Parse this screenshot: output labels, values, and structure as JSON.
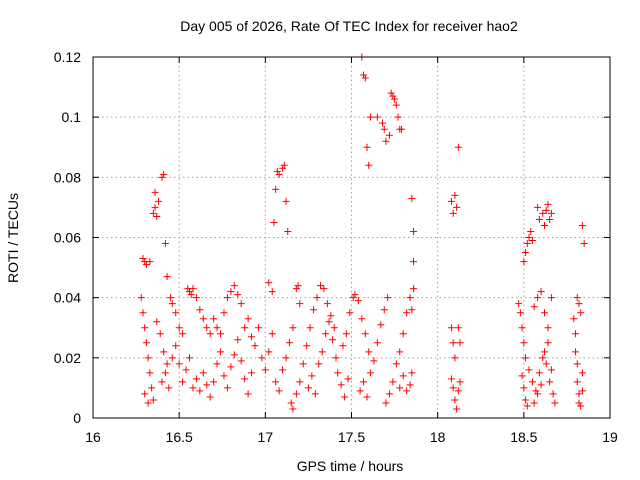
{
  "chart_data": {
    "type": "scatter",
    "title": "Day 005 of 2026, Rate Of TEC Index for receiver hao2",
    "xlabel": "GPS time / hours",
    "ylabel": "ROTI / TECUs",
    "xlim": [
      16,
      19
    ],
    "ylim": [
      0,
      0.12
    ],
    "xticks": [
      "16",
      "16.5",
      "17",
      "17.5",
      "18",
      "18.5",
      "19"
    ],
    "yticks": [
      "0",
      "0.02",
      "0.04",
      "0.06",
      "0.08",
      "0.1",
      "0.12"
    ],
    "xtick_values": [
      16,
      16.5,
      17,
      17.5,
      18,
      18.5,
      19
    ],
    "ytick_values": [
      0,
      0.02,
      0.04,
      0.06,
      0.08,
      0.1,
      0.12
    ],
    "grid": true,
    "marker": "plus",
    "color": "#ff0000",
    "series": [
      {
        "name": "ROTI",
        "points": [
          [
            16.28,
            0.04
          ],
          [
            16.29,
            0.035
          ],
          [
            16.3,
            0.03
          ],
          [
            16.31,
            0.025
          ],
          [
            16.32,
            0.02
          ],
          [
            16.33,
            0.015
          ],
          [
            16.34,
            0.01
          ],
          [
            16.35,
            0.006
          ],
          [
            16.3,
            0.008
          ],
          [
            16.32,
            0.005
          ],
          [
            16.29,
            0.053
          ],
          [
            16.3,
            0.052
          ],
          [
            16.31,
            0.051
          ],
          [
            16.33,
            0.052
          ],
          [
            16.35,
            0.068
          ],
          [
            16.36,
            0.07
          ],
          [
            16.36,
            0.075
          ],
          [
            16.37,
            0.067
          ],
          [
            16.38,
            0.072
          ],
          [
            16.4,
            0.08
          ],
          [
            16.41,
            0.081
          ],
          [
            16.42,
            0.058
          ],
          [
            16.43,
            0.047
          ],
          [
            16.37,
            0.032
          ],
          [
            16.39,
            0.028
          ],
          [
            16.41,
            0.022
          ],
          [
            16.43,
            0.018
          ],
          [
            16.45,
            0.04
          ],
          [
            16.46,
            0.038
          ],
          [
            16.48,
            0.035
          ],
          [
            16.5,
            0.03
          ],
          [
            16.52,
            0.028
          ],
          [
            16.4,
            0.012
          ],
          [
            16.42,
            0.015
          ],
          [
            16.44,
            0.01
          ],
          [
            16.46,
            0.02
          ],
          [
            16.48,
            0.024
          ],
          [
            16.5,
            0.018
          ],
          [
            16.52,
            0.012
          ],
          [
            16.54,
            0.016
          ],
          [
            16.56,
            0.02
          ],
          [
            16.55,
            0.043
          ],
          [
            16.56,
            0.042
          ],
          [
            16.57,
            0.041
          ],
          [
            16.58,
            0.043
          ],
          [
            16.6,
            0.04
          ],
          [
            16.62,
            0.036
          ],
          [
            16.64,
            0.033
          ],
          [
            16.66,
            0.03
          ],
          [
            16.68,
            0.028
          ],
          [
            16.58,
            0.01
          ],
          [
            16.6,
            0.013
          ],
          [
            16.62,
            0.009
          ],
          [
            16.64,
            0.015
          ],
          [
            16.66,
            0.011
          ],
          [
            16.68,
            0.007
          ],
          [
            16.7,
            0.012
          ],
          [
            16.72,
            0.018
          ],
          [
            16.74,
            0.022
          ],
          [
            16.7,
            0.033
          ],
          [
            16.72,
            0.03
          ],
          [
            16.74,
            0.028
          ],
          [
            16.76,
            0.035
          ],
          [
            16.78,
            0.04
          ],
          [
            16.8,
            0.042
          ],
          [
            16.82,
            0.044
          ],
          [
            16.84,
            0.041
          ],
          [
            16.86,
            0.038
          ],
          [
            16.76,
            0.014
          ],
          [
            16.78,
            0.01
          ],
          [
            16.8,
            0.017
          ],
          [
            16.82,
            0.021
          ],
          [
            16.84,
            0.026
          ],
          [
            16.86,
            0.019
          ],
          [
            16.88,
            0.013
          ],
          [
            16.9,
            0.008
          ],
          [
            16.92,
            0.015
          ],
          [
            16.88,
            0.03
          ],
          [
            16.9,
            0.033
          ],
          [
            16.92,
            0.027
          ],
          [
            16.94,
            0.024
          ],
          [
            16.96,
            0.03
          ],
          [
            16.98,
            0.02
          ],
          [
            17.0,
            0.016
          ],
          [
            17.02,
            0.022
          ],
          [
            17.04,
            0.028
          ],
          [
            17.02,
            0.045
          ],
          [
            17.04,
            0.042
          ],
          [
            17.05,
            0.065
          ],
          [
            17.06,
            0.076
          ],
          [
            17.07,
            0.082
          ],
          [
            17.08,
            0.081
          ],
          [
            17.1,
            0.083
          ],
          [
            17.11,
            0.084
          ],
          [
            17.12,
            0.072
          ],
          [
            17.13,
            0.062
          ],
          [
            17.06,
            0.012
          ],
          [
            17.08,
            0.009
          ],
          [
            17.1,
            0.016
          ],
          [
            17.12,
            0.02
          ],
          [
            17.14,
            0.025
          ],
          [
            17.16,
            0.03
          ],
          [
            17.18,
            0.043
          ],
          [
            17.19,
            0.044
          ],
          [
            17.2,
            0.038
          ],
          [
            17.15,
            0.005
          ],
          [
            17.16,
            0.003
          ],
          [
            17.18,
            0.008
          ],
          [
            17.2,
            0.012
          ],
          [
            17.22,
            0.018
          ],
          [
            17.24,
            0.024
          ],
          [
            17.26,
            0.03
          ],
          [
            17.28,
            0.036
          ],
          [
            17.3,
            0.04
          ],
          [
            17.25,
            0.01
          ],
          [
            17.27,
            0.014
          ],
          [
            17.29,
            0.008
          ],
          [
            17.31,
            0.018
          ],
          [
            17.33,
            0.022
          ],
          [
            17.35,
            0.028
          ],
          [
            17.37,
            0.032
          ],
          [
            17.39,
            0.026
          ],
          [
            17.41,
            0.02
          ],
          [
            17.32,
            0.044
          ],
          [
            17.34,
            0.043
          ],
          [
            17.36,
            0.038
          ],
          [
            17.38,
            0.034
          ],
          [
            17.4,
            0.03
          ],
          [
            17.42,
            0.015
          ],
          [
            17.44,
            0.011
          ],
          [
            17.46,
            0.007
          ],
          [
            17.48,
            0.013
          ],
          [
            17.45,
            0.024
          ],
          [
            17.47,
            0.028
          ],
          [
            17.49,
            0.035
          ],
          [
            17.51,
            0.04
          ],
          [
            17.52,
            0.041
          ],
          [
            17.54,
            0.039
          ],
          [
            17.56,
            0.033
          ],
          [
            17.58,
            0.028
          ],
          [
            17.6,
            0.022
          ],
          [
            17.56,
            0.12
          ],
          [
            17.57,
            0.114
          ],
          [
            17.58,
            0.113
          ],
          [
            17.59,
            0.09
          ],
          [
            17.6,
            0.084
          ],
          [
            17.61,
            0.1
          ],
          [
            17.55,
            0.009
          ],
          [
            17.57,
            0.012
          ],
          [
            17.59,
            0.007
          ],
          [
            17.61,
            0.015
          ],
          [
            17.63,
            0.019
          ],
          [
            17.65,
            0.025
          ],
          [
            17.67,
            0.031
          ],
          [
            17.69,
            0.036
          ],
          [
            17.71,
            0.04
          ],
          [
            17.65,
            0.1
          ],
          [
            17.68,
            0.098
          ],
          [
            17.69,
            0.096
          ],
          [
            17.7,
            0.092
          ],
          [
            17.72,
            0.094
          ],
          [
            17.73,
            0.108
          ],
          [
            17.74,
            0.107
          ],
          [
            17.75,
            0.106
          ],
          [
            17.76,
            0.104
          ],
          [
            17.77,
            0.1
          ],
          [
            17.78,
            0.096
          ],
          [
            17.79,
            0.096
          ],
          [
            17.7,
            0.005
          ],
          [
            17.72,
            0.008
          ],
          [
            17.74,
            0.012
          ],
          [
            17.76,
            0.018
          ],
          [
            17.78,
            0.022
          ],
          [
            17.8,
            0.028
          ],
          [
            17.82,
            0.035
          ],
          [
            17.84,
            0.04
          ],
          [
            17.85,
            0.036
          ],
          [
            17.78,
            0.01
          ],
          [
            17.8,
            0.014
          ],
          [
            17.82,
            0.009
          ],
          [
            17.84,
            0.011
          ],
          [
            17.85,
            0.015
          ],
          [
            17.86,
            0.052
          ],
          [
            17.86,
            0.062
          ],
          [
            17.85,
            0.073
          ],
          [
            17.86,
            0.043
          ],
          [
            18.08,
            0.03
          ],
          [
            18.09,
            0.025
          ],
          [
            18.1,
            0.02
          ],
          [
            18.08,
            0.013
          ],
          [
            18.09,
            0.01
          ],
          [
            18.1,
            0.006
          ],
          [
            18.11,
            0.003
          ],
          [
            18.12,
            0.009
          ],
          [
            18.13,
            0.012
          ],
          [
            18.08,
            0.072
          ],
          [
            18.09,
            0.068
          ],
          [
            18.1,
            0.074
          ],
          [
            18.11,
            0.07
          ],
          [
            18.12,
            0.09
          ],
          [
            18.12,
            0.03
          ],
          [
            18.13,
            0.025
          ],
          [
            18.47,
            0.038
          ],
          [
            18.48,
            0.035
          ],
          [
            18.49,
            0.03
          ],
          [
            18.5,
            0.025
          ],
          [
            18.51,
            0.02
          ],
          [
            18.49,
            0.014
          ],
          [
            18.5,
            0.01
          ],
          [
            18.51,
            0.006
          ],
          [
            18.52,
            0.004
          ],
          [
            18.5,
            0.052
          ],
          [
            18.51,
            0.055
          ],
          [
            18.52,
            0.058
          ],
          [
            18.53,
            0.06
          ],
          [
            18.54,
            0.062
          ],
          [
            18.55,
            0.059
          ],
          [
            18.53,
            0.016
          ],
          [
            18.55,
            0.012
          ],
          [
            18.57,
            0.009
          ],
          [
            18.59,
            0.015
          ],
          [
            18.61,
            0.02
          ],
          [
            18.63,
            0.018
          ],
          [
            18.65,
            0.012
          ],
          [
            18.67,
            0.008
          ],
          [
            18.68,
            0.005
          ],
          [
            18.56,
            0.037
          ],
          [
            18.58,
            0.04
          ],
          [
            18.6,
            0.042
          ],
          [
            18.62,
            0.035
          ],
          [
            18.64,
            0.03
          ],
          [
            18.66,
            0.04
          ],
          [
            18.58,
            0.07
          ],
          [
            18.59,
            0.066
          ],
          [
            18.61,
            0.068
          ],
          [
            18.62,
            0.064
          ],
          [
            18.63,
            0.069
          ],
          [
            18.64,
            0.071
          ],
          [
            18.65,
            0.066
          ],
          [
            18.66,
            0.068
          ],
          [
            18.56,
            0.005
          ],
          [
            18.58,
            0.008
          ],
          [
            18.6,
            0.011
          ],
          [
            18.62,
            0.022
          ],
          [
            18.64,
            0.025
          ],
          [
            18.66,
            0.016
          ],
          [
            18.79,
            0.033
          ],
          [
            18.8,
            0.028
          ],
          [
            18.8,
            0.022
          ],
          [
            18.81,
            0.018
          ],
          [
            18.81,
            0.012
          ],
          [
            18.82,
            0.008
          ],
          [
            18.82,
            0.005
          ],
          [
            18.83,
            0.004
          ],
          [
            18.84,
            0.009
          ],
          [
            18.81,
            0.04
          ],
          [
            18.82,
            0.038
          ],
          [
            18.83,
            0.035
          ],
          [
            18.84,
            0.064
          ],
          [
            18.85,
            0.058
          ],
          [
            18.84,
            0.015
          ]
        ]
      }
    ]
  }
}
